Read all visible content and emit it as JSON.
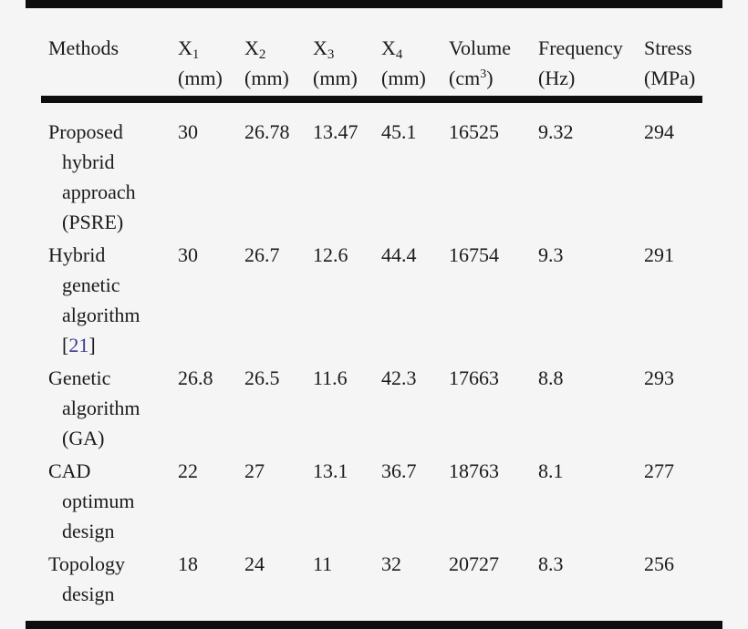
{
  "page": {
    "background_color": "#f5f5f5",
    "text_color": "#1b1b1b",
    "rule_color": "#0e0e0e",
    "citation_color": "#3d3a94"
  },
  "header": {
    "methods": "Methods",
    "x1": {
      "base": "X",
      "sub": "1",
      "unit": "(mm)"
    },
    "x2": {
      "base": "X",
      "sub": "2",
      "unit": "(mm)"
    },
    "x3": {
      "base": "X",
      "sub": "3",
      "unit": "(mm)"
    },
    "x4": {
      "base": "X",
      "sub": "4",
      "unit": "(mm)"
    },
    "volume": {
      "base": "Volume",
      "unit_pre": "(cm",
      "unit_sup": "3",
      "unit_post": ")"
    },
    "frequency": {
      "base": "Frequency",
      "unit": "(Hz)"
    },
    "stress": {
      "base": "Stress",
      "unit": "(MPa)"
    }
  },
  "rows": [
    {
      "m0": "Proposed",
      "m1": "hybrid",
      "m2": "approach",
      "m3": "(PSRE)",
      "v": [
        "30",
        "26.78",
        "13.47",
        "45.1",
        "16525",
        "9.32",
        "294"
      ]
    },
    {
      "m0": "Hybrid",
      "m1": "genetic",
      "m2": "algorithm",
      "cite_open": "[",
      "cite_num": "21",
      "cite_close": "]",
      "v": [
        "30",
        "26.7",
        "12.6",
        "44.4",
        "16754",
        "9.3",
        "291"
      ]
    },
    {
      "m0": "Genetic",
      "m1": "algorithm",
      "m2": "(GA)",
      "v": [
        "26.8",
        "26.5",
        "11.6",
        "42.3",
        "17663",
        "8.8",
        "293"
      ]
    },
    {
      "m0": "CAD",
      "m1": "optimum",
      "m2": "design",
      "v": [
        "22",
        "27",
        "13.1",
        "36.7",
        "18763",
        "8.1",
        "277"
      ]
    },
    {
      "m0": "Topology",
      "m1": "design",
      "v": [
        "18",
        "24",
        "11",
        "32",
        "20727",
        "8.3",
        "256"
      ]
    }
  ],
  "chart_data": {
    "type": "table",
    "title": "",
    "columns": [
      "Methods",
      "X1 (mm)",
      "X2 (mm)",
      "X3 (mm)",
      "X4 (mm)",
      "Volume (cm3)",
      "Frequency (Hz)",
      "Stress (MPa)"
    ],
    "rows": [
      [
        "Proposed hybrid approach (PSRE)",
        30,
        26.78,
        13.47,
        45.1,
        16525,
        9.32,
        294
      ],
      [
        "Hybrid genetic algorithm [21]",
        30,
        26.7,
        12.6,
        44.4,
        16754,
        9.3,
        291
      ],
      [
        "Genetic algorithm (GA)",
        26.8,
        26.5,
        11.6,
        42.3,
        17663,
        8.8,
        293
      ],
      [
        "CAD optimum design",
        22,
        27,
        13.1,
        36.7,
        18763,
        8.1,
        277
      ],
      [
        "Topology design",
        18,
        24,
        11,
        32,
        20727,
        8.3,
        256
      ]
    ]
  }
}
